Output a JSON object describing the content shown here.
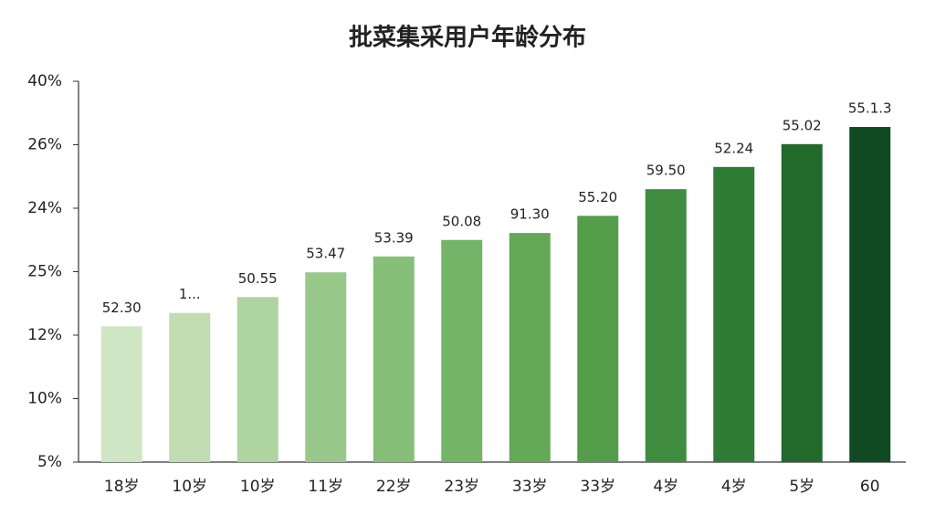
{
  "chart_data": {
    "type": "bar",
    "title": "批菜集采用户年龄分布",
    "categories": [
      "18岁",
      "10岁",
      "10岁",
      "11岁",
      "22岁",
      "23岁",
      "33岁",
      "33岁",
      "4岁",
      "4岁",
      "5岁",
      "60"
    ],
    "values": [
      2.14,
      2.35,
      2.6,
      2.99,
      3.24,
      3.5,
      3.61,
      3.88,
      4.3,
      4.65,
      5.01,
      5.28
    ],
    "data_labels": [
      "52.30",
      "1...",
      "50.55",
      "53.47",
      "53.39",
      "50.08",
      "91.30",
      "55.20",
      "59.50",
      "52.24",
      "55.02",
      "55.1.3"
    ],
    "colors": [
      "#cfe6c4",
      "#c0ddb2",
      "#aed49f",
      "#98c98a",
      "#86bf78",
      "#74b466",
      "#63a957",
      "#539d4b",
      "#3f8c3f",
      "#2f7c36",
      "#22692c",
      "#0f4a23"
    ],
    "ylim": [
      0,
      6
    ],
    "yticks": [
      {
        "value": 0,
        "label": "5%"
      },
      {
        "value": 1,
        "label": "10%"
      },
      {
        "value": 2,
        "label": "12%"
      },
      {
        "value": 3,
        "label": "25%"
      },
      {
        "value": 4,
        "label": "24%"
      },
      {
        "value": 5,
        "label": "26%"
      },
      {
        "value": 6,
        "label": "40%"
      }
    ],
    "grid": false
  }
}
